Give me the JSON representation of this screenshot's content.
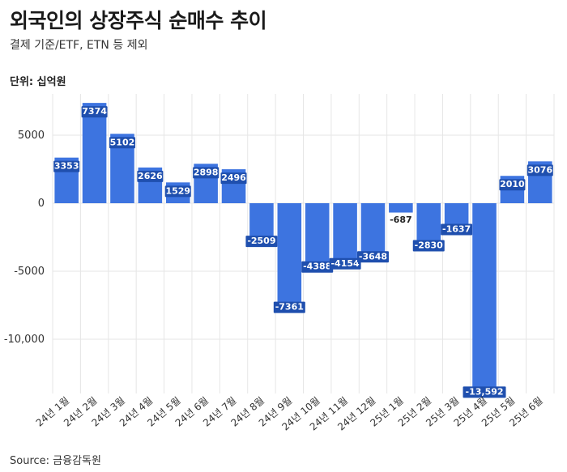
{
  "title": "외국인의 상장주식 순매수 추이",
  "subtitle": "결제 기준/ETF, ETN 등 제외",
  "unit_label": "단위: 십억원",
  "source": "Source: 금융감독원",
  "colors": {
    "bar": "#3d74e0",
    "grid": "#e6e6e6",
    "label_bg": "#1f4fae",
    "label_text": "#ffffff",
    "label_plain_text": "#222222"
  },
  "chart_data": {
    "type": "bar",
    "title": "외국인의 상장주식 순매수 추이",
    "subtitle": "결제 기준/ETF, ETN 등 제외",
    "xlabel": "",
    "ylabel": "단위: 십억원",
    "categories": [
      "24년 1월",
      "24년 2월",
      "24년 3월",
      "24년 4월",
      "24년 5월",
      "24년 6월",
      "24년 7월",
      "24년 8월",
      "24년 9월",
      "24년 10월",
      "24년 11월",
      "24년 12월",
      "25년 1월",
      "25년 2월",
      "25년 3월",
      "25년 4월",
      "25년 5월",
      "25년 6월"
    ],
    "values": [
      3353,
      7374,
      5102,
      2626,
      1529,
      2898,
      2496,
      -2509,
      -7361,
      -4388,
      -4154,
      -3648,
      -687,
      -2830,
      -1637,
      -13592,
      2010,
      3076
    ],
    "value_labels": [
      "3353",
      "7374",
      "5102",
      "2626",
      "1529",
      "2898",
      "2496",
      "-2509",
      "-7361",
      "-4388",
      "-4154",
      "-3648",
      "-687",
      "-2830",
      "-1637",
      "-13,592",
      "2010",
      "3076"
    ],
    "ylim": [
      -14000,
      8000
    ],
    "yticks": [
      5000,
      0,
      -5000,
      -10000
    ],
    "ytick_labels": [
      "5000",
      "0",
      "-5000",
      "-10,000"
    ],
    "grid": true,
    "legend": "none"
  }
}
